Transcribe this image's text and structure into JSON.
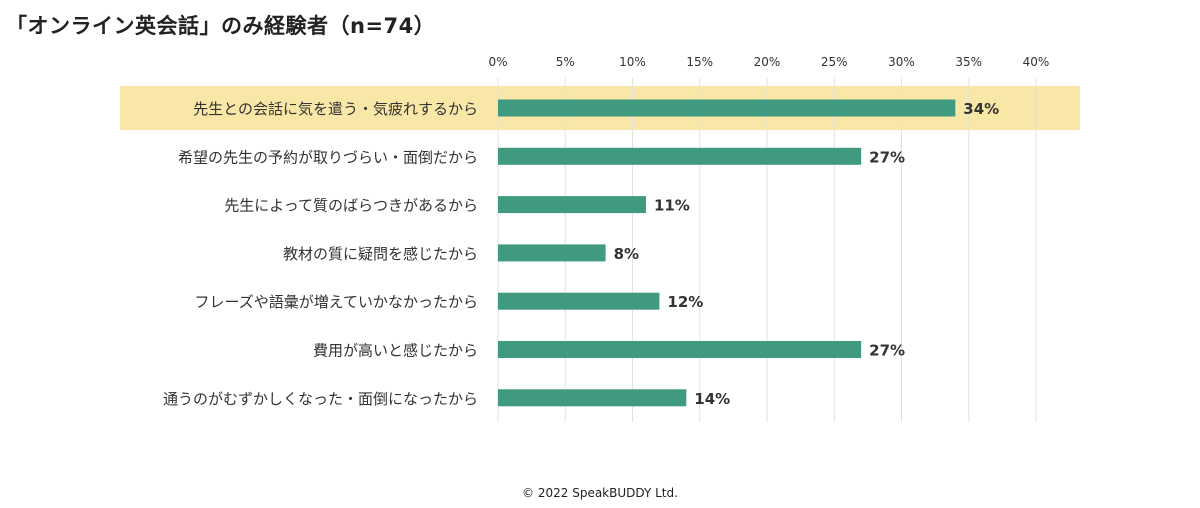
{
  "title": "「オンライン英会話」のみ経験者（n=74）",
  "footer": "© 2022 SpeakBUDDY Ltd.",
  "colors": {
    "bar": "#3f9a7f",
    "highlight": "#f8e7a6",
    "grid": "#e2e2e2",
    "text": "#333333"
  },
  "chart_data": {
    "type": "bar",
    "orientation": "horizontal",
    "categories": [
      "先生との会話に気を遣う・気疲れするから",
      "希望の先生の予約が取りづらい・面倒だから",
      "先生によって質のばらつきがあるから",
      "教材の質に疑問を感じたから",
      "フレーズや語彙が増えていかなかったから",
      "費用が高いと感じたから",
      "通うのがむずかしくなった・面倒になったから"
    ],
    "values": [
      34,
      27,
      11,
      8,
      12,
      27,
      14
    ],
    "data_labels": [
      "34%",
      "27%",
      "11%",
      "8%",
      "12%",
      "27%",
      "14%"
    ],
    "xticks": [
      "0%",
      "5%",
      "10%",
      "15%",
      "20%",
      "25%",
      "30%",
      "35%",
      "40%"
    ],
    "xlim": [
      0,
      40
    ],
    "highlighted_category": "先生との会話に気を遣う・気疲れするから",
    "grid": true
  }
}
